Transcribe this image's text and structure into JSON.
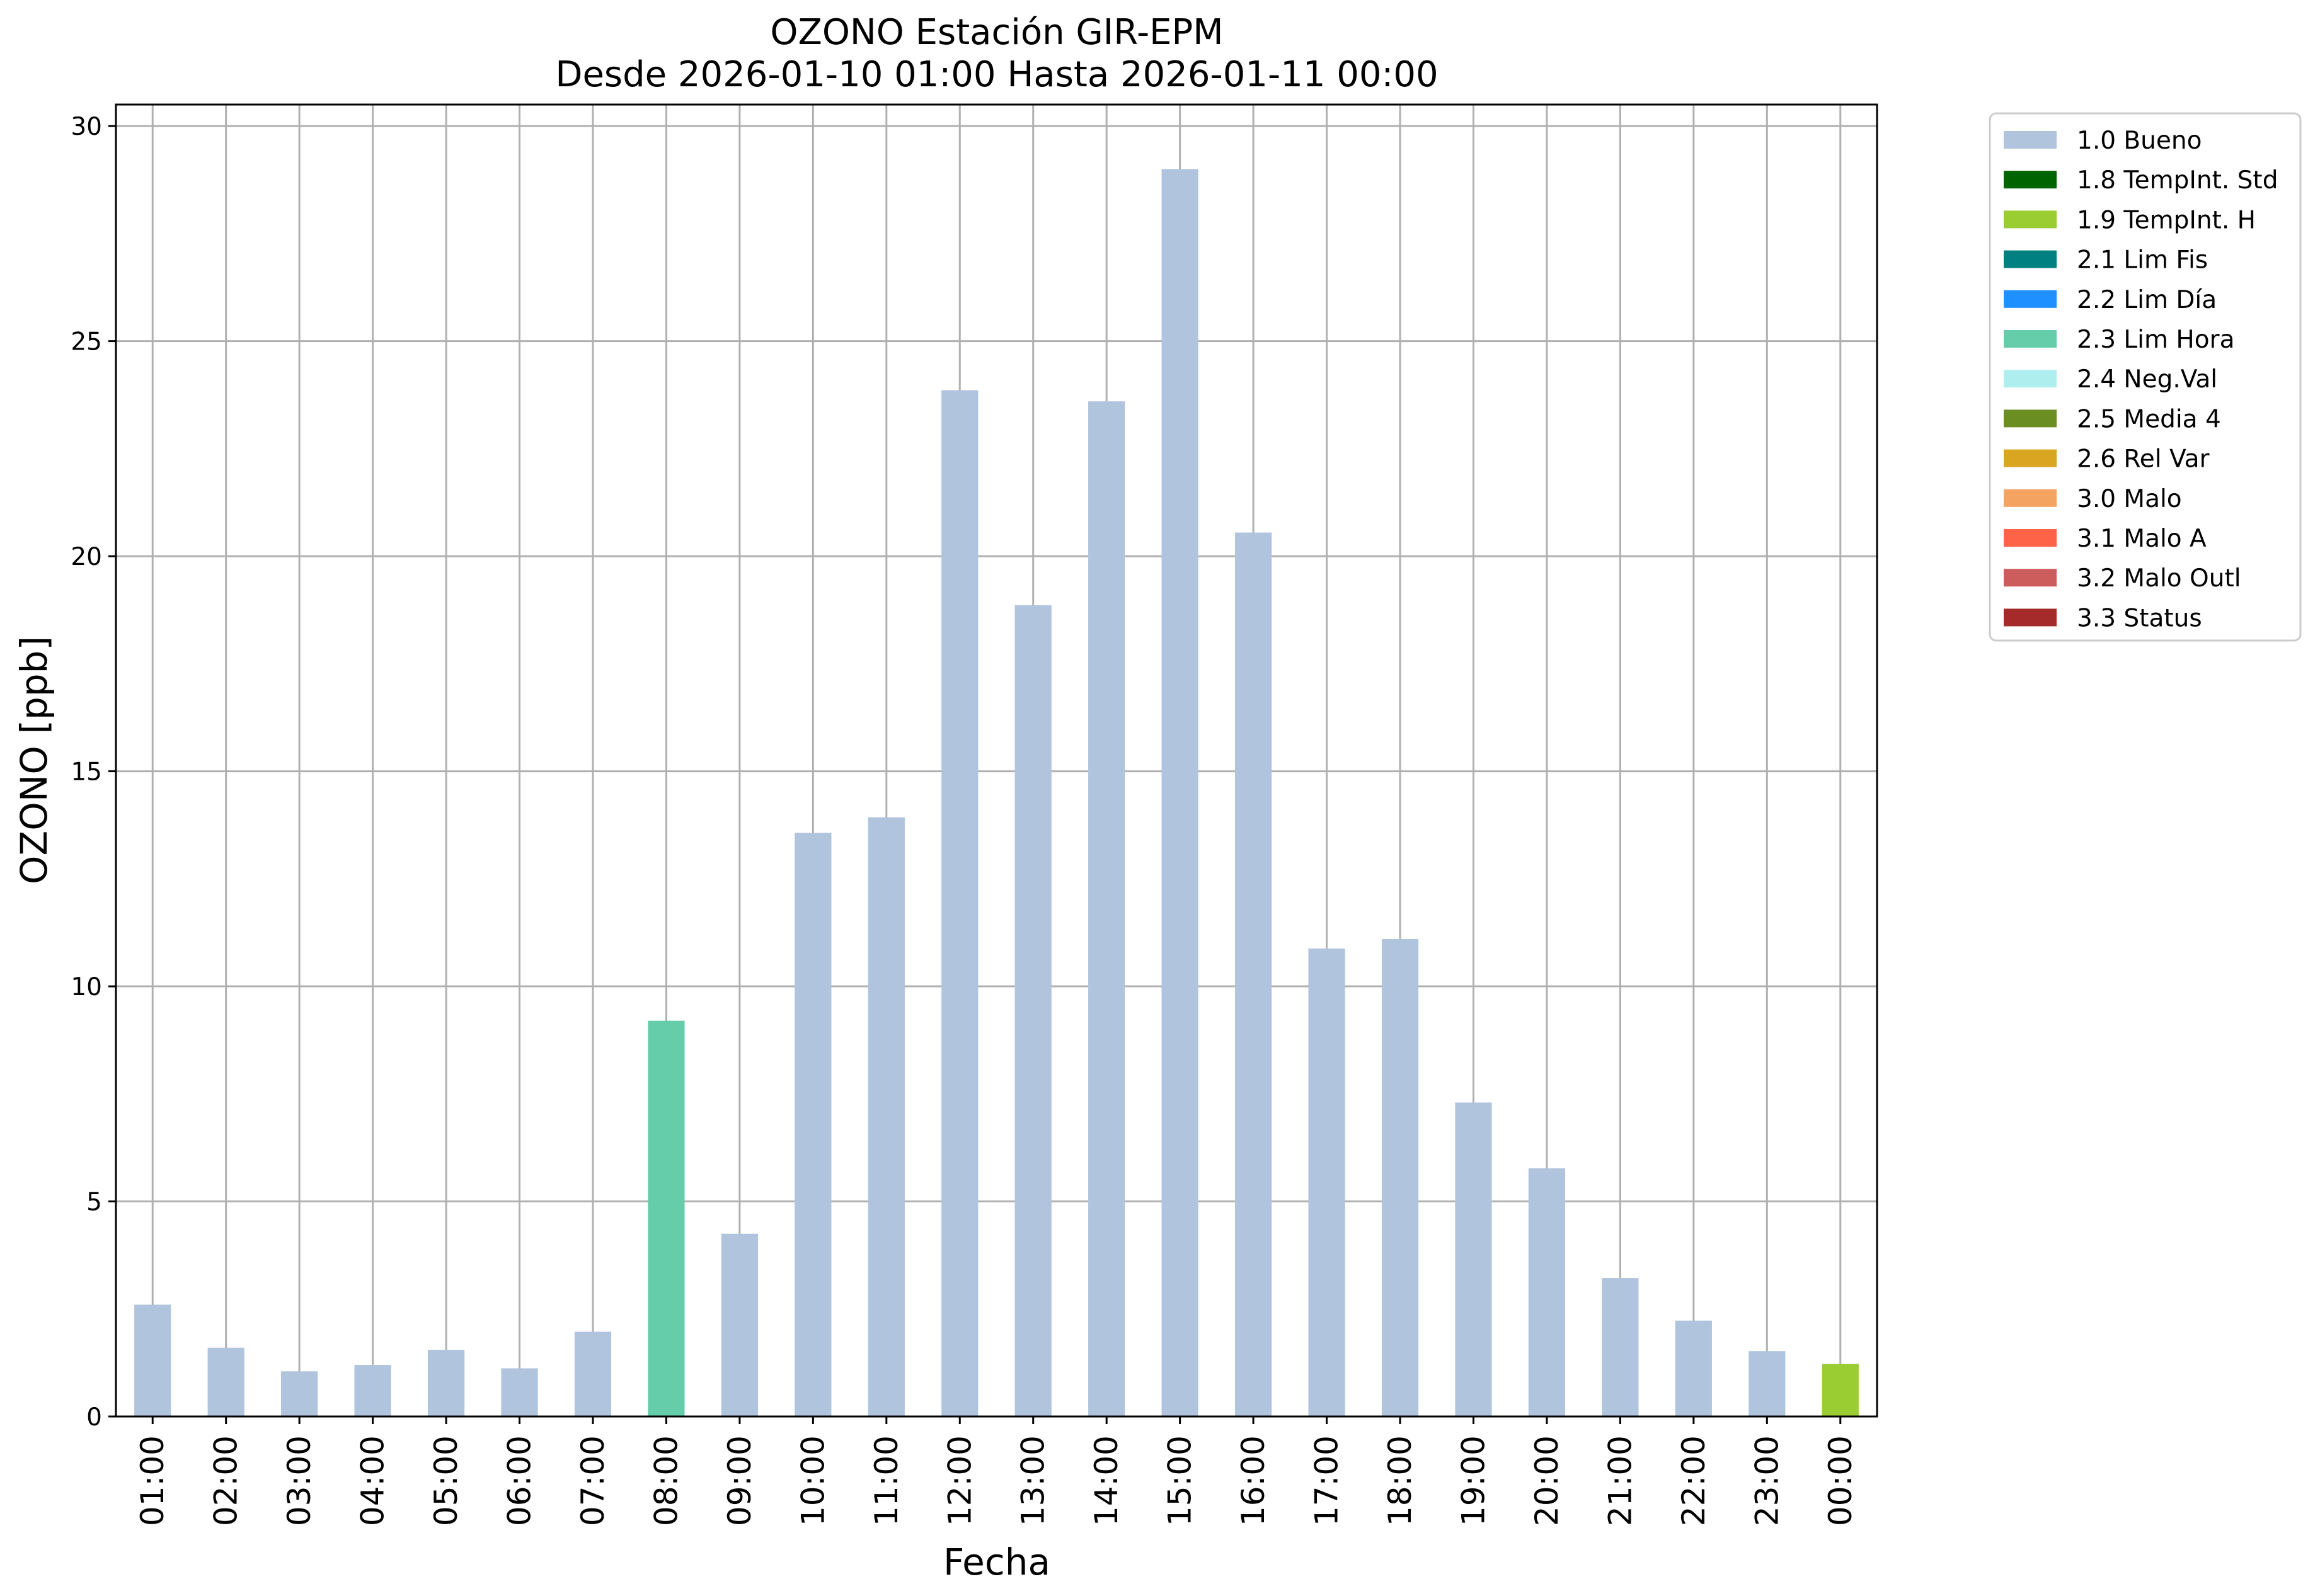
{
  "chart_data": {
    "type": "bar",
    "title": "OZONO Estación GIR-EPM",
    "subtitle": "Desde 2026-01-10 01:00 Hasta 2026-01-11 00:00",
    "xlabel": "Fecha",
    "ylabel": "OZONO [ppb]",
    "ylim": [
      0,
      30.5
    ],
    "yticks": [
      0,
      5,
      10,
      15,
      20,
      25,
      30
    ],
    "grid": true,
    "legend_position": "outside-top-right",
    "categories": [
      "01:00",
      "02:00",
      "03:00",
      "04:00",
      "05:00",
      "06:00",
      "07:00",
      "08:00",
      "09:00",
      "10:00",
      "11:00",
      "12:00",
      "13:00",
      "14:00",
      "15:00",
      "16:00",
      "17:00",
      "18:00",
      "19:00",
      "20:00",
      "21:00",
      "22:00",
      "23:00",
      "00:00"
    ],
    "values": [
      2.6,
      1.6,
      1.05,
      1.2,
      1.55,
      1.12,
      1.97,
      9.2,
      4.25,
      13.57,
      13.93,
      23.86,
      18.86,
      23.6,
      29.0,
      20.55,
      10.88,
      11.1,
      7.3,
      5.77,
      3.22,
      2.23,
      1.52,
      1.22
    ],
    "flags": [
      "1.0 Bueno",
      "1.0 Bueno",
      "1.0 Bueno",
      "1.0 Bueno",
      "1.0 Bueno",
      "1.0 Bueno",
      "1.0 Bueno",
      "2.3 Lim Hora",
      "1.0 Bueno",
      "1.0 Bueno",
      "1.0 Bueno",
      "1.0 Bueno",
      "1.0 Bueno",
      "1.0 Bueno",
      "1.0 Bueno",
      "1.0 Bueno",
      "1.0 Bueno",
      "1.0 Bueno",
      "1.0 Bueno",
      "1.0 Bueno",
      "1.0 Bueno",
      "1.0 Bueno",
      "1.0 Bueno",
      "1.9 TempInt. H"
    ],
    "legend": [
      {
        "label": "1.0 Bueno",
        "color": "#b0c4de"
      },
      {
        "label": "1.8 TempInt. Std",
        "color": "#006400"
      },
      {
        "label": "1.9 TempInt. H",
        "color": "#9acd32"
      },
      {
        "label": "2.1 Lim Fis",
        "color": "#008080"
      },
      {
        "label": "2.2 Lim Día",
        "color": "#1e90ff"
      },
      {
        "label": "2.3 Lim Hora",
        "color": "#66cdaa"
      },
      {
        "label": "2.4 Neg.Val",
        "color": "#afeeee"
      },
      {
        "label": "2.5 Media 4",
        "color": "#6b8e23"
      },
      {
        "label": "2.6 Rel Var",
        "color": "#daa520"
      },
      {
        "label": "3.0 Malo",
        "color": "#f4a460"
      },
      {
        "label": "3.1 Malo A",
        "color": "#ff6347"
      },
      {
        "label": "3.2 Malo Outl",
        "color": "#cd5c5c"
      },
      {
        "label": "3.3 Status",
        "color": "#a52a2a"
      }
    ]
  }
}
